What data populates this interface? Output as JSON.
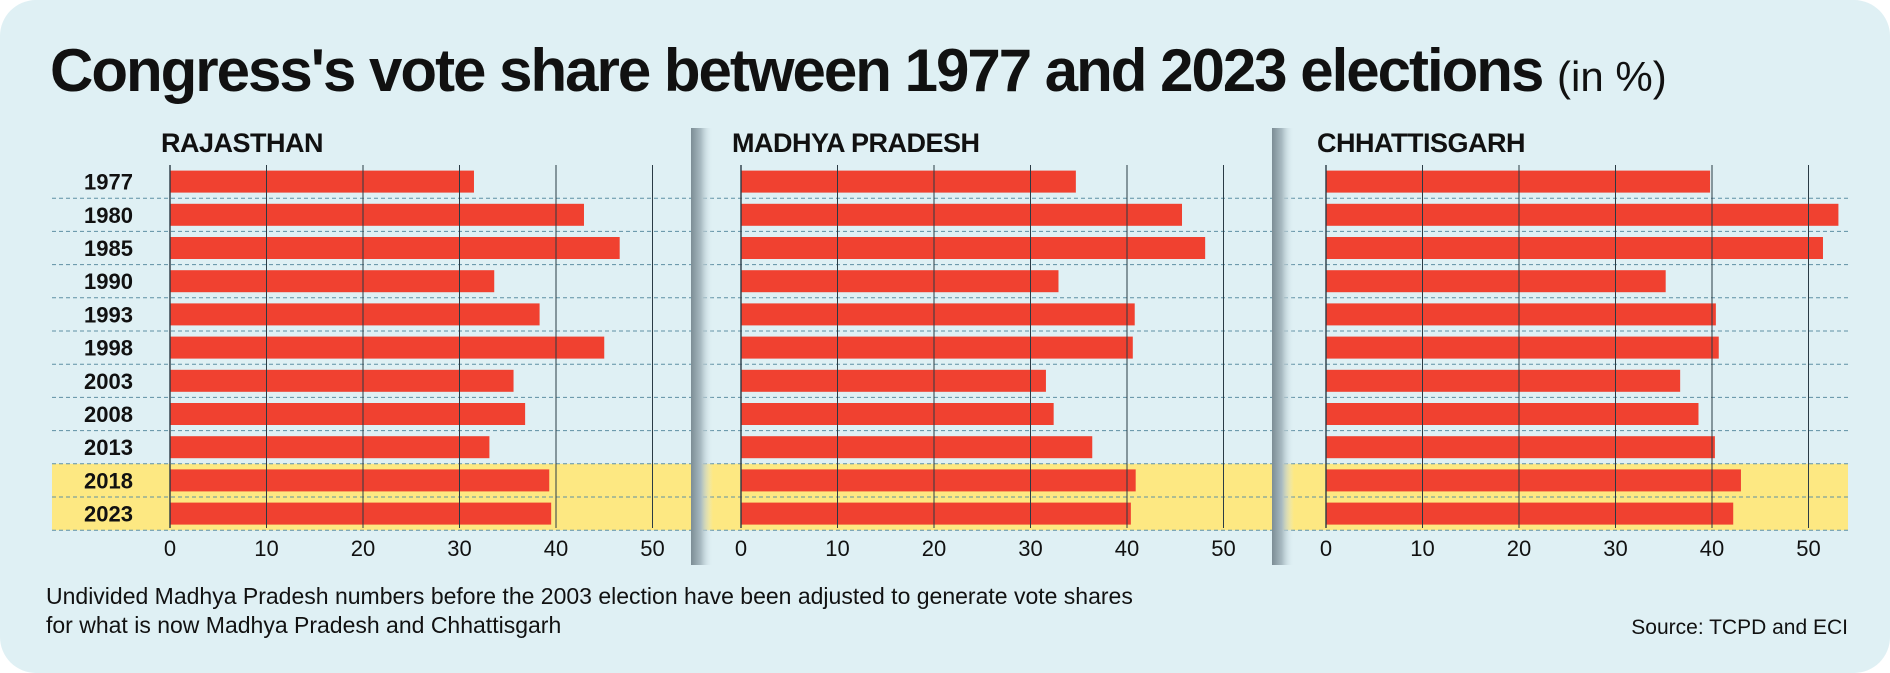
{
  "title": "Congress's vote share between 1977 and 2023 elections",
  "title_unit": "(in %)",
  "note": "Undivided Madhya Pradesh numbers before the 2003 election have been adjusted to generate vote shares for what is now Madhya Pradesh and Chhattisgarh",
  "source": "Source: TCPD and ECI",
  "colors": {
    "background": "#dff0f4",
    "bar": "#f04130",
    "highlight": "#fde882",
    "gridline": "#2a3b45",
    "row_separator": "#5f8fa3"
  },
  "chart_data": [
    {
      "type": "bar",
      "orientation": "horizontal",
      "title": "RAJASTHAN",
      "categories": [
        "1977",
        "1980",
        "1985",
        "1990",
        "1993",
        "1998",
        "2003",
        "2008",
        "2013",
        "2018",
        "2023"
      ],
      "values": [
        31.5,
        42.9,
        46.6,
        33.6,
        38.3,
        45.0,
        35.6,
        36.8,
        33.1,
        39.3,
        39.5
      ],
      "highlighted": [
        "2018",
        "2023"
      ],
      "xlim": [
        0,
        53
      ],
      "xticks": [
        0,
        10,
        20,
        30,
        40,
        50
      ],
      "grid": true
    },
    {
      "type": "bar",
      "orientation": "horizontal",
      "title": "MADHYA PRADESH",
      "categories": [
        "1977",
        "1980",
        "1985",
        "1990",
        "1993",
        "1998",
        "2003",
        "2008",
        "2013",
        "2018",
        "2023"
      ],
      "values": [
        34.7,
        45.7,
        48.1,
        32.9,
        40.8,
        40.6,
        31.6,
        32.4,
        36.4,
        40.9,
        40.4
      ],
      "highlighted": [
        "2018",
        "2023"
      ],
      "xlim": [
        0,
        53
      ],
      "xticks": [
        0,
        10,
        20,
        30,
        40,
        50
      ],
      "grid": true
    },
    {
      "type": "bar",
      "orientation": "horizontal",
      "title": "CHHATTISGARH",
      "categories": [
        "1977",
        "1980",
        "1985",
        "1990",
        "1993",
        "1998",
        "2003",
        "2008",
        "2013",
        "2018",
        "2023"
      ],
      "values": [
        39.8,
        53.1,
        51.5,
        35.2,
        40.4,
        40.7,
        36.7,
        38.6,
        40.3,
        43.0,
        42.2
      ],
      "highlighted": [
        "2018",
        "2023"
      ],
      "xlim": [
        0,
        53
      ],
      "xticks": [
        0,
        10,
        20,
        30,
        40,
        50
      ],
      "grid": true
    }
  ]
}
